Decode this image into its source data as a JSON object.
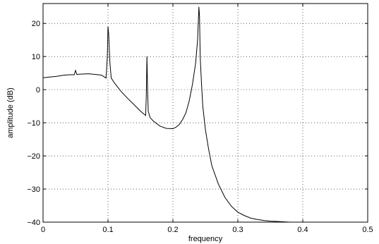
{
  "chart_data": {
    "type": "line",
    "title": "",
    "xlabel": "frequency",
    "ylabel": "amplitude (dB)",
    "xlim": [
      0,
      0.5
    ],
    "ylim": [
      -40,
      26
    ],
    "xticks": [
      0,
      0.1,
      0.2,
      0.3,
      0.4,
      0.5
    ],
    "xtick_labels": [
      "0",
      "0.1",
      "0.2",
      "0.3",
      "0.4",
      "0.5"
    ],
    "yticks": [
      -40,
      -30,
      -20,
      -10,
      0,
      10,
      20
    ],
    "ytick_labels": [
      "−40",
      "−30",
      "−20",
      "−10",
      "0",
      "10",
      "20"
    ],
    "grid": true,
    "series": [
      {
        "x": [
          0,
          0.01,
          0.02,
          0.03,
          0.04,
          0.048,
          0.05,
          0.052,
          0.06,
          0.07,
          0.08,
          0.09,
          0.097,
          0.099,
          0.1,
          0.101,
          0.103,
          0.105,
          0.11,
          0.12,
          0.13,
          0.14,
          0.15,
          0.158,
          0.159,
          0.16,
          0.161,
          0.162,
          0.165,
          0.17,
          0.18,
          0.19,
          0.2,
          0.205,
          0.21,
          0.215,
          0.22,
          0.225,
          0.23,
          0.235,
          0.238,
          0.24,
          0.241,
          0.242,
          0.244,
          0.246,
          0.25,
          0.255,
          0.26,
          0.27,
          0.28,
          0.29,
          0.3,
          0.31,
          0.32,
          0.33,
          0.34,
          0.35,
          0.36,
          0.37,
          0.38,
          0.39,
          0.4,
          0.41,
          0.42,
          0.45,
          0.5
        ],
        "y": [
          3.6,
          3.8,
          4.0,
          4.3,
          4.5,
          4.5,
          5.8,
          4.6,
          4.7,
          4.8,
          4.6,
          4.4,
          3.5,
          10,
          19,
          17,
          8,
          3.5,
          2.0,
          -0.5,
          -2.6,
          -4.5,
          -6.5,
          -7.8,
          -2,
          10,
          0,
          -6.5,
          -8.5,
          -9.5,
          -11,
          -11.7,
          -11.8,
          -11.3,
          -10.5,
          -9,
          -7.0,
          -3.5,
          1.5,
          8,
          15,
          25,
          22,
          10,
          2,
          -5,
          -12,
          -18,
          -23,
          -28.5,
          -32.5,
          -35.2,
          -37.0,
          -38.0,
          -38.8,
          -39.2,
          -39.5,
          -39.7,
          -39.8,
          -39.9,
          -40,
          -40,
          -40,
          -40,
          -40,
          -40,
          -40
        ]
      }
    ]
  }
}
